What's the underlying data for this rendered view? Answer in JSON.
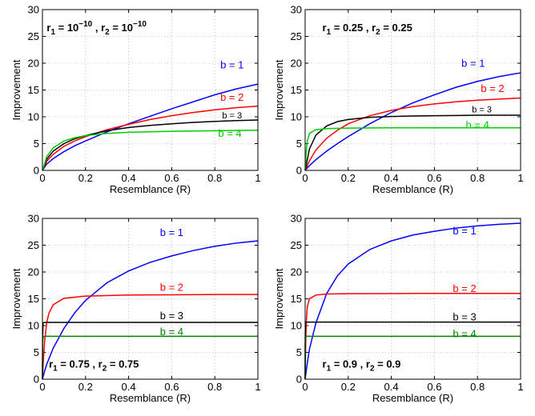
{
  "chart_data": [
    {
      "type": "line",
      "annotation": {
        "r1": "r",
        "r1_sub": "1",
        "r1_val": " = 10",
        "r1_exp": "−10",
        "sep": " , ",
        "r2": "r",
        "r2_sub": "2",
        "r2_val": " = 10",
        "r2_exp": "−10"
      },
      "xlabel": "Resemblance (R)",
      "ylabel": "Improvement",
      "xlim": [
        0,
        1
      ],
      "ylim": [
        0,
        30
      ],
      "xticks": [
        "0",
        "0.2",
        "0.4",
        "0.6",
        "0.8",
        "1"
      ],
      "yticks": [
        "0",
        "5",
        "10",
        "15",
        "20",
        "25",
        "30"
      ],
      "grid": true,
      "series": [
        {
          "name": "b = 1",
          "color": "#0000ff",
          "x": [
            0,
            0.02,
            0.05,
            0.1,
            0.15,
            0.2,
            0.3,
            0.4,
            0.5,
            0.6,
            0.7,
            0.8,
            0.9,
            1.0
          ],
          "y": [
            0,
            1.2,
            2.2,
            3.5,
            4.6,
            5.5,
            7.2,
            8.7,
            10.1,
            11.5,
            12.8,
            14.1,
            15.2,
            16.1
          ]
        },
        {
          "name": "b = 2",
          "color": "#ff0000",
          "x": [
            0,
            0.02,
            0.05,
            0.1,
            0.15,
            0.2,
            0.3,
            0.4,
            0.5,
            0.6,
            0.7,
            0.8,
            0.9,
            1.0
          ],
          "y": [
            0,
            1.7,
            3.0,
            4.5,
            5.5,
            6.3,
            7.6,
            8.6,
            9.5,
            10.2,
            10.8,
            11.3,
            11.7,
            12.0
          ]
        },
        {
          "name": "b = 3",
          "color": "#000000",
          "x": [
            0,
            0.02,
            0.05,
            0.1,
            0.15,
            0.2,
            0.3,
            0.4,
            0.5,
            0.6,
            0.7,
            0.8,
            0.9,
            1.0
          ],
          "y": [
            0,
            2.1,
            3.6,
            5.0,
            5.9,
            6.5,
            7.4,
            8.0,
            8.4,
            8.7,
            8.95,
            9.15,
            9.3,
            9.4
          ]
        },
        {
          "name": "b = 4",
          "color": "#00cc00",
          "x": [
            0,
            0.02,
            0.05,
            0.1,
            0.15,
            0.2,
            0.3,
            0.4,
            0.5,
            0.6,
            0.7,
            0.8,
            0.9,
            1.0
          ],
          "y": [
            0,
            2.6,
            4.2,
            5.5,
            6.1,
            6.5,
            6.9,
            7.1,
            7.2,
            7.3,
            7.35,
            7.4,
            7.45,
            7.5
          ]
        }
      ]
    },
    {
      "type": "line",
      "annotation": {
        "r1": "r",
        "r1_sub": "1",
        "r1_val": " = 0.25",
        "r1_exp": "",
        "sep": " , ",
        "r2": "r",
        "r2_sub": "2",
        "r2_val": " = 0.25",
        "r2_exp": ""
      },
      "xlabel": "Resemblance (R)",
      "ylabel": "Improvement",
      "xlim": [
        0,
        1
      ],
      "ylim": [
        0,
        30
      ],
      "xticks": [
        "0",
        "0.2",
        "0.4",
        "0.6",
        "0.8",
        "1"
      ],
      "yticks": [
        "0",
        "5",
        "10",
        "15",
        "20",
        "25",
        "30"
      ],
      "grid": true,
      "series": [
        {
          "name": "b = 1",
          "color": "#0000ff",
          "x": [
            0,
            0.02,
            0.05,
            0.1,
            0.15,
            0.2,
            0.3,
            0.4,
            0.5,
            0.6,
            0.7,
            0.8,
            0.9,
            1.0
          ],
          "y": [
            0,
            0.9,
            2.0,
            3.6,
            5.0,
            6.3,
            8.7,
            10.8,
            12.6,
            14.1,
            15.5,
            16.6,
            17.5,
            18.2
          ]
        },
        {
          "name": "b = 2",
          "color": "#ff0000",
          "x": [
            0,
            0.02,
            0.05,
            0.1,
            0.15,
            0.2,
            0.3,
            0.4,
            0.5,
            0.6,
            0.7,
            0.8,
            0.9,
            1.0
          ],
          "y": [
            0,
            1.8,
            3.8,
            6.0,
            7.5,
            8.7,
            10.2,
            11.2,
            11.9,
            12.4,
            12.8,
            13.1,
            13.3,
            13.5
          ]
        },
        {
          "name": "b = 3",
          "color": "#000000",
          "x": [
            0,
            0.02,
            0.05,
            0.1,
            0.15,
            0.2,
            0.3,
            0.4,
            0.5,
            0.6,
            0.7,
            0.8,
            0.9,
            1.0
          ],
          "y": [
            0,
            4.0,
            6.6,
            8.3,
            9.1,
            9.5,
            9.9,
            10.05,
            10.15,
            10.2,
            10.25,
            10.3,
            10.3,
            10.3
          ]
        },
        {
          "name": "b = 4",
          "color": "#00cc00",
          "x": [
            0,
            0.005,
            0.01,
            0.02,
            0.05,
            0.1,
            0.2,
            0.4,
            0.6,
            0.8,
            1.0
          ],
          "y": [
            0,
            3.5,
            5.5,
            6.9,
            7.6,
            7.8,
            7.9,
            7.95,
            7.95,
            7.95,
            7.95
          ]
        }
      ]
    },
    {
      "type": "line",
      "annotation": {
        "r1": "r",
        "r1_sub": "1",
        "r1_val": " = 0.75",
        "r1_exp": "",
        "sep": " , ",
        "r2": "r",
        "r2_sub": "2",
        "r2_val": " = 0.75",
        "r2_exp": ""
      },
      "xlabel": "Resemblance (R)",
      "ylabel": "Improvement",
      "xlim": [
        0,
        1
      ],
      "ylim": [
        0,
        30
      ],
      "xticks": [
        "0",
        "0.2",
        "0.4",
        "0.6",
        "0.8",
        "1"
      ],
      "yticks": [
        "0",
        "5",
        "10",
        "15",
        "20",
        "25",
        "30"
      ],
      "grid": true,
      "series": [
        {
          "name": "b = 1",
          "color": "#0000ff",
          "x": [
            0,
            0.01,
            0.02,
            0.05,
            0.1,
            0.15,
            0.2,
            0.3,
            0.4,
            0.5,
            0.6,
            0.7,
            0.8,
            0.9,
            1.0
          ],
          "y": [
            0,
            1.5,
            2.8,
            5.8,
            9.5,
            12.4,
            14.7,
            18.0,
            20.2,
            21.8,
            23.0,
            24.0,
            24.8,
            25.4,
            25.8
          ]
        },
        {
          "name": "b = 2",
          "color": "#ff0000",
          "x": [
            0,
            0.005,
            0.01,
            0.02,
            0.03,
            0.05,
            0.1,
            0.2,
            0.4,
            0.6,
            0.8,
            1.0
          ],
          "y": [
            0,
            4.0,
            7.0,
            10.6,
            12.3,
            13.9,
            15.1,
            15.5,
            15.7,
            15.75,
            15.8,
            15.8
          ]
        },
        {
          "name": "b = 3",
          "color": "#000000",
          "x": [
            0,
            0.001,
            0.003,
            0.01,
            1.0
          ],
          "y": [
            0,
            8.0,
            10.5,
            10.6,
            10.6
          ]
        },
        {
          "name": "b = 4",
          "color": "#008000",
          "x": [
            0,
            0.001,
            0.003,
            0.01,
            1.0
          ],
          "y": [
            0,
            6.5,
            7.9,
            8.0,
            8.0
          ]
        }
      ]
    },
    {
      "type": "line",
      "annotation": {
        "r1": "r",
        "r1_sub": "1",
        "r1_val": " = 0.9",
        "r1_exp": "",
        "sep": " , ",
        "r2": "r",
        "r2_sub": "2",
        "r2_val": " = 0.9",
        "r2_exp": ""
      },
      "xlabel": "Resemblance (R)",
      "ylabel": "Improvement",
      "xlim": [
        0,
        1
      ],
      "ylim": [
        0,
        30
      ],
      "xticks": [
        "0",
        "0.2",
        "0.4",
        "0.6",
        "0.8",
        "1"
      ],
      "yticks": [
        "0",
        "5",
        "10",
        "15",
        "20",
        "25",
        "30"
      ],
      "grid": true,
      "series": [
        {
          "name": "b = 1",
          "color": "#0000ff",
          "x": [
            0,
            0.01,
            0.02,
            0.05,
            0.1,
            0.15,
            0.2,
            0.3,
            0.4,
            0.5,
            0.6,
            0.7,
            0.8,
            0.9,
            1.0
          ],
          "y": [
            0,
            3.0,
            5.6,
            10.5,
            16.0,
            19.3,
            21.5,
            24.2,
            25.8,
            26.9,
            27.6,
            28.2,
            28.6,
            28.9,
            29.1
          ]
        },
        {
          "name": "b = 2",
          "color": "#ff0000",
          "x": [
            0,
            0.002,
            0.005,
            0.01,
            0.02,
            0.05,
            0.1,
            0.2,
            0.5,
            1.0
          ],
          "y": [
            0,
            5.5,
            10.5,
            13.5,
            15.0,
            15.7,
            15.9,
            15.95,
            16.0,
            16.0
          ]
        },
        {
          "name": "b = 3",
          "color": "#000000",
          "x": [
            0,
            0.0005,
            0.002,
            0.01,
            1.0
          ],
          "y": [
            0,
            8.0,
            10.6,
            10.65,
            10.65
          ]
        },
        {
          "name": "b = 4",
          "color": "#008000",
          "x": [
            0,
            0.0005,
            0.002,
            0.01,
            1.0
          ],
          "y": [
            0,
            6.5,
            8.0,
            8.0,
            8.0
          ]
        }
      ]
    }
  ]
}
